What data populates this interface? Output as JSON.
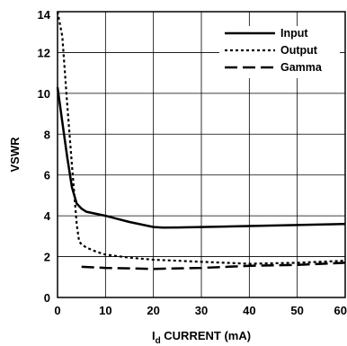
{
  "chart_data": {
    "type": "line",
    "title": "",
    "xlabel_main": "I",
    "xlabel_sub": "d",
    "xlabel_rest": " CURRENT (mA)",
    "ylabel": "VSWR",
    "xlim": [
      0,
      60
    ],
    "ylim": [
      0,
      14
    ],
    "x_ticks": [
      "0",
      "10",
      "20",
      "30",
      "40",
      "50",
      "60"
    ],
    "y_ticks": [
      "0",
      "2",
      "4",
      "6",
      "8",
      "10",
      "12",
      "14"
    ],
    "grid": true,
    "legend_position": "top-right",
    "series": [
      {
        "name": "Input",
        "style": "solid",
        "x": [
          0,
          1,
          2,
          3,
          4,
          5,
          6,
          8,
          10,
          15,
          20,
          22,
          25,
          30,
          40,
          50,
          60
        ],
        "y": [
          10.3,
          8.6,
          6.9,
          5.4,
          4.6,
          4.35,
          4.2,
          4.1,
          4.0,
          3.7,
          3.45,
          3.42,
          3.43,
          3.45,
          3.5,
          3.55,
          3.6
        ]
      },
      {
        "name": "Output",
        "style": "dotted",
        "x": [
          0,
          1,
          2,
          3,
          4,
          4.5,
          5,
          6,
          8,
          10,
          15,
          20,
          30,
          40,
          50,
          60
        ],
        "y": [
          14.0,
          12.8,
          9.5,
          6.5,
          3.6,
          2.75,
          2.6,
          2.45,
          2.25,
          2.1,
          1.95,
          1.85,
          1.75,
          1.65,
          1.7,
          1.8
        ]
      },
      {
        "name": "Gamma",
        "style": "dashed",
        "x": [
          5,
          10,
          20,
          30,
          40,
          50,
          60
        ],
        "y": [
          1.5,
          1.45,
          1.4,
          1.45,
          1.55,
          1.6,
          1.7
        ]
      }
    ]
  }
}
